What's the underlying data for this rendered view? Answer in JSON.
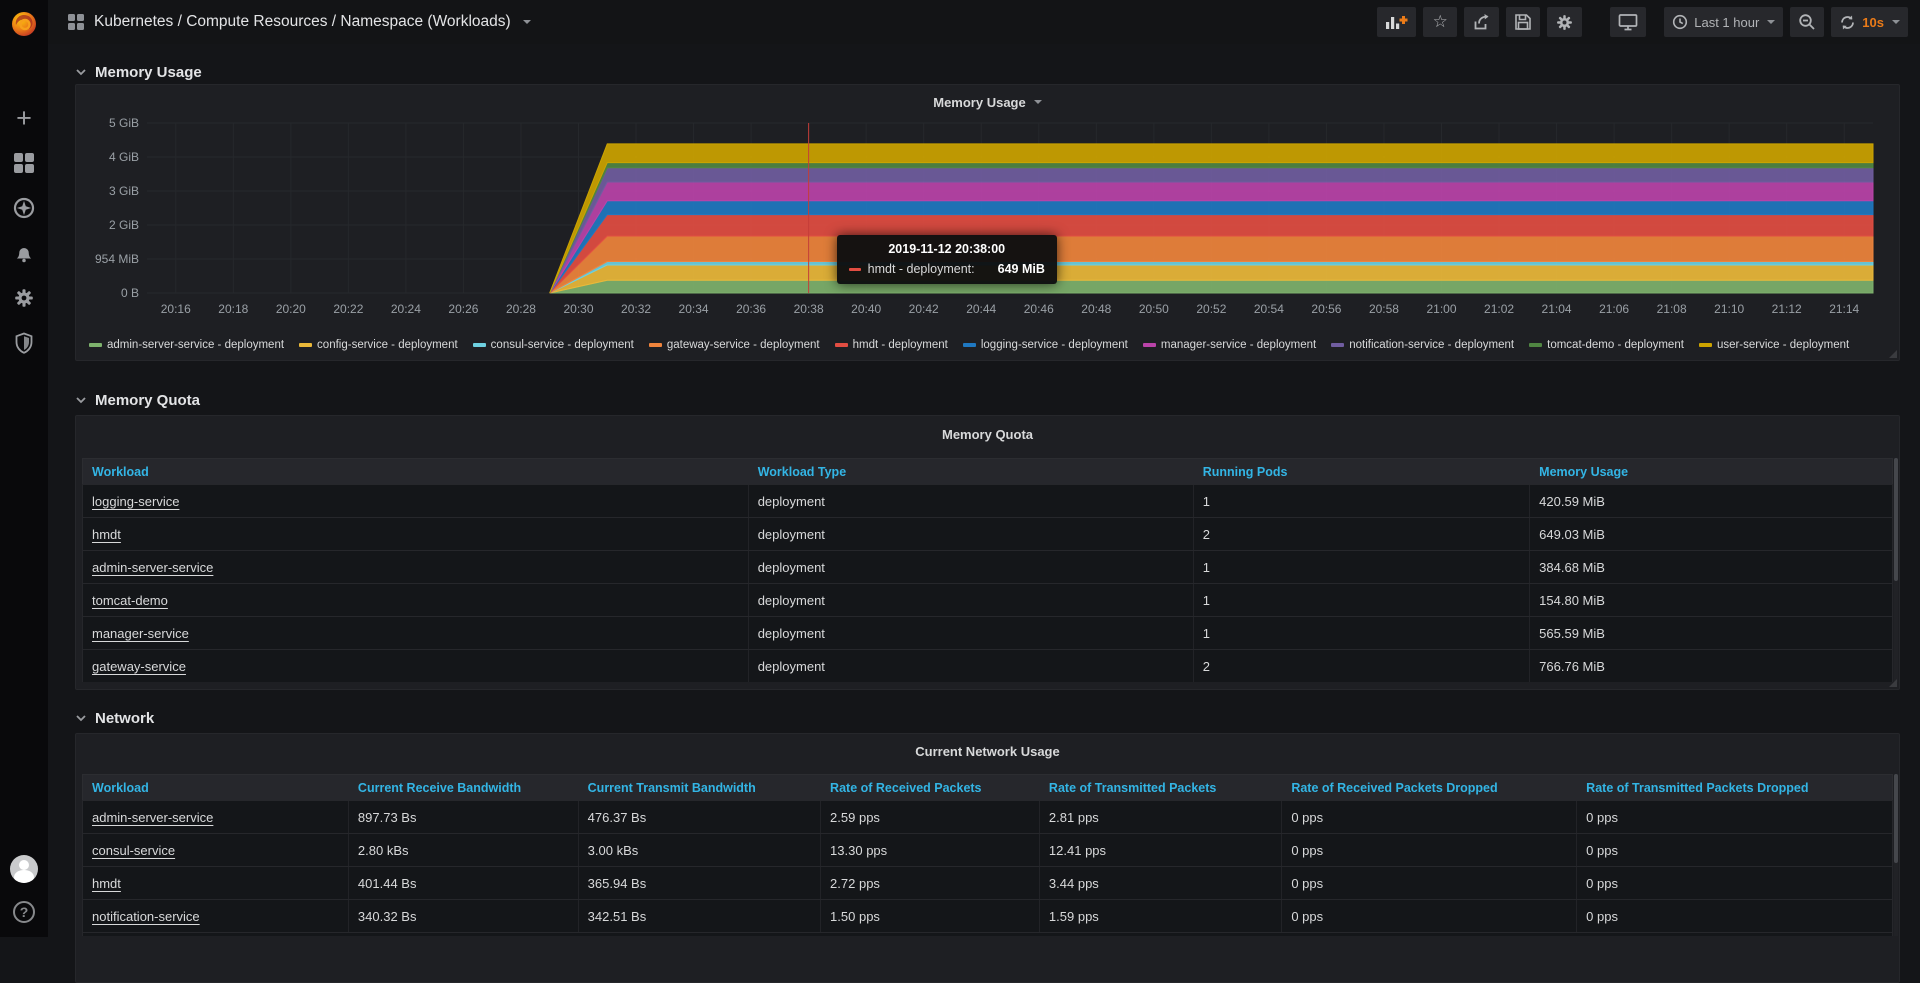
{
  "nav": {
    "title": "Kubernetes / Compute Resources / Namespace (Workloads)",
    "time_range": "Last 1 hour",
    "refresh_interval": "10s",
    "accent_orange": "#eb7b18",
    "icons": [
      "add-panel",
      "star",
      "share",
      "save",
      "settings",
      "tv-mode",
      "time-range",
      "zoom-out",
      "refresh"
    ]
  },
  "sidebar_icons": [
    "plus",
    "dashboards",
    "explore",
    "alerting",
    "configuration",
    "shield",
    "avatar",
    "help"
  ],
  "help_glyph": "?",
  "star_glyph": "☆",
  "sections": {
    "memory_usage": {
      "title": "Memory Usage"
    },
    "memory_quota": {
      "title": "Memory Quota"
    },
    "network": {
      "title": "Network"
    }
  },
  "chart_data": {
    "type": "area",
    "stacked": true,
    "title": "Memory Usage",
    "y_tick_labels": [
      "0 B",
      "954 MiB",
      "2 GiB",
      "3 GiB",
      "4 GiB",
      "5 GiB"
    ],
    "y_unit_per_tick_gib": 1,
    "x_tick_minutes": [
      0,
      2,
      4,
      6,
      8,
      10,
      12,
      14,
      16,
      18,
      20,
      22,
      24,
      26,
      28,
      30,
      32,
      34,
      36,
      38,
      40,
      42,
      44,
      46,
      48,
      50,
      52,
      54,
      56,
      58
    ],
    "x_tick_labels": [
      "20:16",
      "20:18",
      "20:20",
      "20:22",
      "20:24",
      "20:26",
      "20:28",
      "20:30",
      "20:32",
      "20:34",
      "20:36",
      "20:38",
      "20:40",
      "20:42",
      "20:44",
      "20:46",
      "20:48",
      "20:50",
      "20:52",
      "20:54",
      "20:56",
      "20:58",
      "21:00",
      "21:02",
      "21:04",
      "21:06",
      "21:08",
      "21:10",
      "21:12",
      "21:14"
    ],
    "x_start_min": -1,
    "x_end_min": 59,
    "ramp_start_min": 13,
    "ramp_end_min": 15,
    "series": [
      {
        "name": "admin-server-service - deployment",
        "color": "#7EB26D",
        "plateau_gib": 0.375
      },
      {
        "name": "config-service - deployment",
        "color": "#EAB839",
        "plateau_gib": 0.45
      },
      {
        "name": "consul-service - deployment",
        "color": "#6ED0E0",
        "plateau_gib": 0.1
      },
      {
        "name": "gateway-service - deployment",
        "color": "#EF843C",
        "plateau_gib": 0.75
      },
      {
        "name": "hmdt - deployment",
        "color": "#E24D42",
        "plateau_gib": 0.63
      },
      {
        "name": "logging-service - deployment",
        "color": "#1F78C1",
        "plateau_gib": 0.41
      },
      {
        "name": "manager-service - deployment",
        "color": "#BA43A9",
        "plateau_gib": 0.55
      },
      {
        "name": "notification-service - deployment",
        "color": "#705DA0",
        "plateau_gib": 0.42
      },
      {
        "name": "tomcat-demo - deployment",
        "color": "#508642",
        "plateau_gib": 0.15
      },
      {
        "name": "user-service - deployment",
        "color": "#CCA300",
        "plateau_gib": 0.55
      }
    ],
    "crosshair_min": 22,
    "crosshair_color": "#c43d38",
    "tooltip": {
      "time": "2019-11-12 20:38:00",
      "series_label": "hmdt - deployment:",
      "value": "649 MiB",
      "color": "#E24D42"
    }
  },
  "memory_quota_table": {
    "panel_title": "Memory Quota",
    "columns": [
      "Workload",
      "Workload Type",
      "Running Pods",
      "Memory Usage"
    ],
    "rows": [
      [
        "logging-service",
        "deployment",
        "1",
        "420.59 MiB"
      ],
      [
        "hmdt",
        "deployment",
        "2",
        "649.03 MiB"
      ],
      [
        "admin-server-service",
        "deployment",
        "1",
        "384.68 MiB"
      ],
      [
        "tomcat-demo",
        "deployment",
        "1",
        "154.80 MiB"
      ],
      [
        "manager-service",
        "deployment",
        "1",
        "565.59 MiB"
      ],
      [
        "gateway-service",
        "deployment",
        "2",
        "766.76 MiB"
      ]
    ]
  },
  "network_table": {
    "panel_title": "Current Network Usage",
    "columns": [
      "Workload",
      "Current Receive Bandwidth",
      "Current Transmit Bandwidth",
      "Rate of Received Packets",
      "Rate of Transmitted Packets",
      "Rate of Received Packets Dropped",
      "Rate of Transmitted Packets Dropped"
    ],
    "rows": [
      [
        "admin-server-service",
        "897.73 Bs",
        "476.37 Bs",
        "2.59 pps",
        "2.81 pps",
        "0 pps",
        "0 pps"
      ],
      [
        "consul-service",
        "2.80 kBs",
        "3.00 kBs",
        "13.30 pps",
        "12.41 pps",
        "0 pps",
        "0 pps"
      ],
      [
        "hmdt",
        "401.44 Bs",
        "365.94 Bs",
        "2.72 pps",
        "3.44 pps",
        "0 pps",
        "0 pps"
      ],
      [
        "notification-service",
        "340.32 Bs",
        "342.51 Bs",
        "1.50 pps",
        "1.59 pps",
        "0 pps",
        "0 pps"
      ]
    ]
  }
}
